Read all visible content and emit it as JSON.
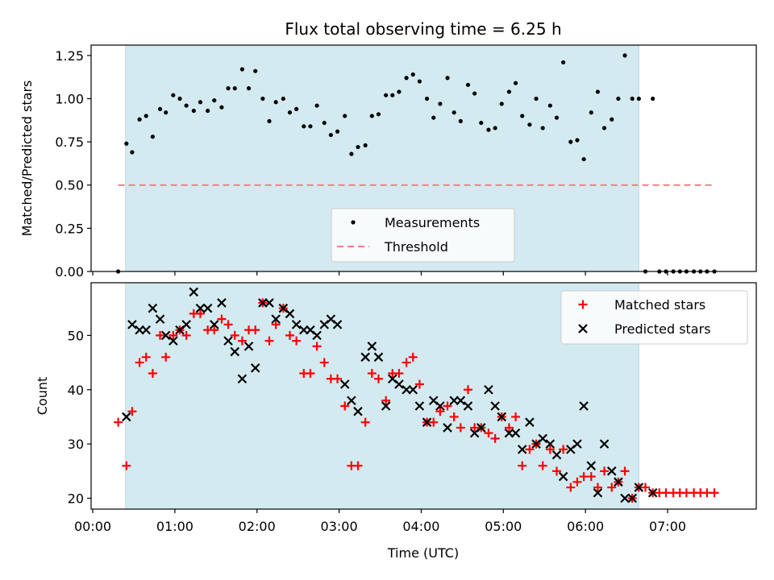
{
  "figure": {
    "title": "Flux total observing time = 6.25 h",
    "xlabel": "Time (UTC)"
  },
  "chart_data": [
    {
      "type": "scatter",
      "ylabel": "Matched/Predicted stars",
      "ylim": [
        0,
        1.31
      ],
      "xlim": [
        -0.02,
        8.08
      ],
      "x_unit": "hours after 00:00 UTC",
      "yticks": [
        "0.00",
        "0.25",
        "0.50",
        "0.75",
        "1.00",
        "1.25"
      ],
      "shaded_span": [
        0.4,
        6.65
      ],
      "grid": false,
      "legend_placement": "lower center",
      "series": [
        {
          "name": "Measurements",
          "marker": "dot",
          "color": "#000000",
          "points": [
            [
              0.31,
              0.0
            ],
            [
              0.41,
              0.74
            ],
            [
              0.48,
              0.69
            ],
            [
              0.57,
              0.88
            ],
            [
              0.65,
              0.9
            ],
            [
              0.73,
              0.78
            ],
            [
              0.82,
              0.94
            ],
            [
              0.89,
              0.92
            ],
            [
              0.98,
              1.02
            ],
            [
              1.06,
              1.0
            ],
            [
              1.14,
              0.96
            ],
            [
              1.23,
              0.93
            ],
            [
              1.31,
              0.98
            ],
            [
              1.4,
              0.93
            ],
            [
              1.48,
              0.99
            ],
            [
              1.57,
              0.95
            ],
            [
              1.65,
              1.06
            ],
            [
              1.73,
              1.06
            ],
            [
              1.82,
              1.17
            ],
            [
              1.9,
              1.06
            ],
            [
              1.98,
              1.16
            ],
            [
              2.07,
              1.0
            ],
            [
              2.15,
              0.87
            ],
            [
              2.23,
              0.98
            ],
            [
              2.32,
              1.0
            ],
            [
              2.4,
              0.92
            ],
            [
              2.48,
              0.94
            ],
            [
              2.57,
              0.84
            ],
            [
              2.65,
              0.84
            ],
            [
              2.73,
              0.96
            ],
            [
              2.82,
              0.86
            ],
            [
              2.9,
              0.79
            ],
            [
              2.98,
              0.81
            ],
            [
              3.07,
              0.9
            ],
            [
              3.15,
              0.68
            ],
            [
              3.23,
              0.72
            ],
            [
              3.32,
              0.73
            ],
            [
              3.4,
              0.9
            ],
            [
              3.48,
              0.91
            ],
            [
              3.57,
              1.02
            ],
            [
              3.65,
              1.02
            ],
            [
              3.73,
              1.04
            ],
            [
              3.82,
              1.12
            ],
            [
              3.9,
              1.14
            ],
            [
              3.98,
              1.1
            ],
            [
              4.07,
              1.0
            ],
            [
              4.15,
              0.89
            ],
            [
              4.23,
              0.97
            ],
            [
              4.32,
              1.12
            ],
            [
              4.4,
              0.92
            ],
            [
              4.48,
              0.87
            ],
            [
              4.57,
              1.08
            ],
            [
              4.65,
              1.03
            ],
            [
              4.73,
              0.86
            ],
            [
              4.82,
              0.82
            ],
            [
              4.9,
              0.83
            ],
            [
              4.98,
              0.97
            ],
            [
              5.07,
              1.04
            ],
            [
              5.15,
              1.09
            ],
            [
              5.23,
              0.9
            ],
            [
              5.32,
              0.85
            ],
            [
              5.4,
              1.0
            ],
            [
              5.48,
              0.83
            ],
            [
              5.57,
              0.96
            ],
            [
              5.65,
              0.89
            ],
            [
              5.73,
              1.21
            ],
            [
              5.82,
              0.75
            ],
            [
              5.9,
              0.76
            ],
            [
              5.98,
              0.65
            ],
            [
              6.07,
              0.92
            ],
            [
              6.15,
              1.04
            ],
            [
              6.23,
              0.83
            ],
            [
              6.32,
              0.88
            ],
            [
              6.4,
              1.0
            ],
            [
              6.48,
              1.25
            ],
            [
              6.57,
              1.0
            ],
            [
              6.65,
              1.0
            ],
            [
              6.73,
              0.0
            ],
            [
              6.82,
              1.0
            ],
            [
              6.9,
              0.0
            ],
            [
              6.98,
              0.0
            ],
            [
              7.07,
              0.0
            ],
            [
              7.15,
              0.0
            ],
            [
              7.23,
              0.0
            ],
            [
              7.32,
              0.0
            ],
            [
              7.4,
              0.0
            ],
            [
              7.48,
              0.0
            ],
            [
              7.57,
              0.0
            ]
          ]
        },
        {
          "name": "Threshold",
          "marker": "dashed-line",
          "color": "#f08080",
          "points": [
            [
              0.31,
              0.5
            ],
            [
              7.57,
              0.5
            ]
          ]
        }
      ]
    },
    {
      "type": "scatter",
      "ylabel": "Count",
      "ylim": [
        18,
        59.7
      ],
      "xlim": [
        -0.02,
        8.08
      ],
      "x_unit": "hours after 00:00 UTC",
      "yticks": [
        "20",
        "30",
        "40",
        "50"
      ],
      "xticks": [
        "00:00",
        "01:00",
        "02:00",
        "03:00",
        "04:00",
        "05:00",
        "06:00",
        "07:00"
      ],
      "shaded_span": [
        0.4,
        6.65
      ],
      "grid": false,
      "legend_placement": "upper right",
      "series": [
        {
          "name": "Matched stars",
          "marker": "plus",
          "color": "#ff0000",
          "points": [
            [
              0.31,
              34
            ],
            [
              0.41,
              26
            ],
            [
              0.48,
              36
            ],
            [
              0.57,
              45
            ],
            [
              0.65,
              46
            ],
            [
              0.73,
              43
            ],
            [
              0.82,
              50
            ],
            [
              0.89,
              46
            ],
            [
              0.98,
              50
            ],
            [
              1.06,
              51
            ],
            [
              1.14,
              50
            ],
            [
              1.23,
              54
            ],
            [
              1.31,
              54
            ],
            [
              1.4,
              51
            ],
            [
              1.48,
              51
            ],
            [
              1.57,
              53
            ],
            [
              1.65,
              52
            ],
            [
              1.73,
              50
            ],
            [
              1.82,
              49
            ],
            [
              1.9,
              51
            ],
            [
              1.98,
              51
            ],
            [
              2.07,
              56
            ],
            [
              2.15,
              49
            ],
            [
              2.23,
              52
            ],
            [
              2.32,
              55
            ],
            [
              2.4,
              50
            ],
            [
              2.48,
              49
            ],
            [
              2.57,
              43
            ],
            [
              2.65,
              43
            ],
            [
              2.73,
              48
            ],
            [
              2.82,
              45
            ],
            [
              2.9,
              42
            ],
            [
              2.98,
              42
            ],
            [
              3.07,
              37
            ],
            [
              3.15,
              26
            ],
            [
              3.23,
              26
            ],
            [
              3.32,
              34
            ],
            [
              3.4,
              43
            ],
            [
              3.48,
              42
            ],
            [
              3.57,
              38
            ],
            [
              3.65,
              43
            ],
            [
              3.73,
              43
            ],
            [
              3.82,
              45
            ],
            [
              3.9,
              46
            ],
            [
              3.98,
              41
            ],
            [
              4.07,
              34
            ],
            [
              4.15,
              34
            ],
            [
              4.23,
              36
            ],
            [
              4.32,
              37
            ],
            [
              4.4,
              35
            ],
            [
              4.48,
              33
            ],
            [
              4.57,
              40
            ],
            [
              4.65,
              33
            ],
            [
              4.73,
              33
            ],
            [
              4.82,
              32
            ],
            [
              4.9,
              31
            ],
            [
              4.98,
              35
            ],
            [
              5.07,
              33
            ],
            [
              5.15,
              35
            ],
            [
              5.23,
              26
            ],
            [
              5.32,
              29
            ],
            [
              5.4,
              30
            ],
            [
              5.48,
              26
            ],
            [
              5.57,
              29
            ],
            [
              5.65,
              25
            ],
            [
              5.73,
              29
            ],
            [
              5.82,
              22
            ],
            [
              5.9,
              23
            ],
            [
              5.98,
              24
            ],
            [
              6.07,
              24
            ],
            [
              6.15,
              22
            ],
            [
              6.23,
              25
            ],
            [
              6.32,
              22
            ],
            [
              6.4,
              23
            ],
            [
              6.48,
              25
            ],
            [
              6.57,
              20
            ],
            [
              6.65,
              22
            ],
            [
              6.73,
              22
            ],
            [
              6.82,
              21
            ],
            [
              6.9,
              21
            ],
            [
              6.98,
              21
            ],
            [
              7.07,
              21
            ],
            [
              7.15,
              21
            ],
            [
              7.23,
              21
            ],
            [
              7.32,
              21
            ],
            [
              7.4,
              21
            ],
            [
              7.48,
              21
            ],
            [
              7.57,
              21
            ]
          ]
        },
        {
          "name": "Predicted stars",
          "marker": "x",
          "color": "#000000",
          "points": [
            [
              0.41,
              35
            ],
            [
              0.48,
              52
            ],
            [
              0.57,
              51
            ],
            [
              0.65,
              51
            ],
            [
              0.73,
              55
            ],
            [
              0.82,
              53
            ],
            [
              0.89,
              50
            ],
            [
              0.98,
              49
            ],
            [
              1.06,
              51
            ],
            [
              1.14,
              52
            ],
            [
              1.23,
              58
            ],
            [
              1.31,
              55
            ],
            [
              1.4,
              55
            ],
            [
              1.48,
              52
            ],
            [
              1.57,
              56
            ],
            [
              1.65,
              49
            ],
            [
              1.73,
              47
            ],
            [
              1.82,
              42
            ],
            [
              1.9,
              48
            ],
            [
              1.98,
              44
            ],
            [
              2.07,
              56
            ],
            [
              2.15,
              56
            ],
            [
              2.23,
              53
            ],
            [
              2.32,
              55
            ],
            [
              2.4,
              54
            ],
            [
              2.48,
              52
            ],
            [
              2.57,
              51
            ],
            [
              2.65,
              51
            ],
            [
              2.73,
              50
            ],
            [
              2.82,
              52
            ],
            [
              2.9,
              53
            ],
            [
              2.98,
              52
            ],
            [
              3.07,
              41
            ],
            [
              3.15,
              38
            ],
            [
              3.23,
              36
            ],
            [
              3.32,
              46
            ],
            [
              3.4,
              48
            ],
            [
              3.48,
              46
            ],
            [
              3.57,
              37
            ],
            [
              3.65,
              42
            ],
            [
              3.73,
              41
            ],
            [
              3.82,
              40
            ],
            [
              3.9,
              40
            ],
            [
              3.98,
              37
            ],
            [
              4.07,
              34
            ],
            [
              4.15,
              38
            ],
            [
              4.23,
              37
            ],
            [
              4.32,
              33
            ],
            [
              4.4,
              38
            ],
            [
              4.48,
              38
            ],
            [
              4.57,
              37
            ],
            [
              4.65,
              32
            ],
            [
              4.73,
              33
            ],
            [
              4.82,
              40
            ],
            [
              4.9,
              37
            ],
            [
              4.98,
              35
            ],
            [
              5.07,
              32
            ],
            [
              5.15,
              32
            ],
            [
              5.23,
              29
            ],
            [
              5.32,
              34
            ],
            [
              5.4,
              30
            ],
            [
              5.48,
              31
            ],
            [
              5.57,
              30
            ],
            [
              5.65,
              28
            ],
            [
              5.73,
              24
            ],
            [
              5.82,
              29
            ],
            [
              5.9,
              30
            ],
            [
              5.98,
              37
            ],
            [
              6.07,
              26
            ],
            [
              6.15,
              21
            ],
            [
              6.23,
              30
            ],
            [
              6.32,
              25
            ],
            [
              6.4,
              23
            ],
            [
              6.48,
              20
            ],
            [
              6.57,
              20
            ],
            [
              6.65,
              22
            ],
            [
              6.82,
              21
            ]
          ]
        }
      ]
    }
  ]
}
